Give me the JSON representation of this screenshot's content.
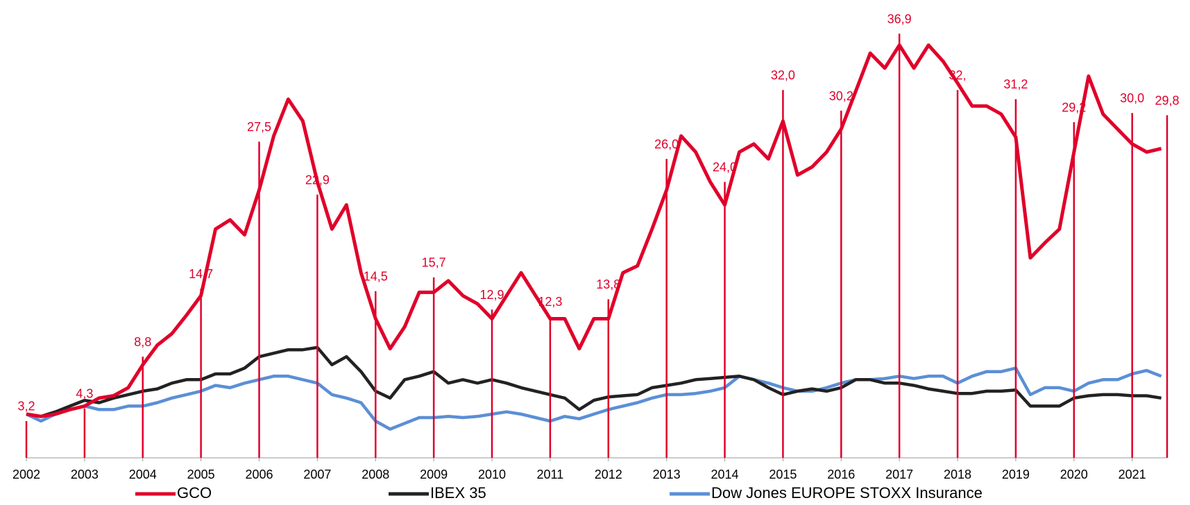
{
  "chart_data": {
    "type": "line",
    "x": [
      2002,
      2002.25,
      2002.5,
      2002.75,
      2003,
      2003.25,
      2003.5,
      2003.75,
      2004,
      2004.25,
      2004.5,
      2004.75,
      2005,
      2005.25,
      2005.5,
      2005.75,
      2006,
      2006.25,
      2006.5,
      2006.75,
      2007,
      2007.25,
      2007.5,
      2007.75,
      2008,
      2008.25,
      2008.5,
      2008.75,
      2009,
      2009.25,
      2009.5,
      2009.75,
      2010,
      2010.25,
      2010.5,
      2010.75,
      2011,
      2011.25,
      2011.5,
      2011.75,
      2012,
      2012.25,
      2012.5,
      2012.75,
      2013,
      2013.25,
      2013.5,
      2013.75,
      2014,
      2014.25,
      2014.5,
      2014.75,
      2015,
      2015.25,
      2015.5,
      2015.75,
      2016,
      2016.25,
      2016.5,
      2016.75,
      2017,
      2017.25,
      2017.5,
      2017.75,
      2018,
      2018.25,
      2018.5,
      2018.75,
      2019,
      2019.25,
      2019.5,
      2019.75,
      2020,
      2020.25,
      2020.5,
      2020.75,
      2021,
      2021.25,
      2021.5
    ],
    "series": [
      {
        "name": "GCO",
        "color": "#e0002a",
        "values": [
          3.8,
          3.6,
          3.8,
          4.2,
          4.5,
          5.2,
          5.4,
          6.1,
          8.1,
          9.8,
          10.8,
          12.4,
          14.1,
          19.9,
          20.7,
          19.4,
          23.3,
          28.0,
          31.2,
          29.3,
          24.0,
          19.9,
          22.0,
          16.1,
          12.1,
          9.5,
          11.4,
          14.4,
          14.4,
          15.4,
          14.1,
          13.4,
          12.1,
          14.1,
          16.1,
          14.1,
          12.1,
          12.1,
          9.5,
          12.1,
          12.1,
          16.1,
          16.7,
          19.9,
          23.3,
          28.0,
          26.6,
          24.0,
          22.0,
          26.6,
          27.3,
          26.0,
          29.3,
          24.6,
          25.3,
          26.6,
          28.6,
          31.9,
          35.2,
          33.9,
          35.9,
          33.9,
          35.9,
          34.5,
          32.6,
          30.6,
          30.6,
          29.9,
          27.9,
          17.4,
          18.7,
          19.9,
          26.6,
          33.2,
          29.9,
          28.6,
          27.3,
          26.6,
          26.9
        ]
      },
      {
        "name": "IBEX 35",
        "color": "#222222",
        "values": [
          3.8,
          3.6,
          4.0,
          4.5,
          5.0,
          4.8,
          5.2,
          5.5,
          5.8,
          6.0,
          6.5,
          6.8,
          6.8,
          7.3,
          7.3,
          7.8,
          8.8,
          9.1,
          9.4,
          9.4,
          9.6,
          8.1,
          8.8,
          7.5,
          5.8,
          5.2,
          6.8,
          7.1,
          7.5,
          6.5,
          6.8,
          6.5,
          6.8,
          6.5,
          6.1,
          5.8,
          5.5,
          5.2,
          4.2,
          5.0,
          5.3,
          5.4,
          5.5,
          6.1,
          6.3,
          6.5,
          6.8,
          6.9,
          7.0,
          7.1,
          6.8,
          6.1,
          5.5,
          5.8,
          6.0,
          5.8,
          6.1,
          6.8,
          6.8,
          6.5,
          6.5,
          6.3,
          6.0,
          5.8,
          5.6,
          5.6,
          5.8,
          5.8,
          5.9,
          4.5,
          4.5,
          4.5,
          5.2,
          5.4,
          5.5,
          5.5,
          5.4,
          5.4,
          5.2
        ]
      },
      {
        "name": "Dow Jones EUROPE STOXX Insurance",
        "color": "#5b8fd6",
        "values": [
          3.8,
          3.2,
          3.8,
          4.2,
          4.5,
          4.2,
          4.2,
          4.5,
          4.5,
          4.8,
          5.2,
          5.5,
          5.8,
          6.3,
          6.1,
          6.5,
          6.8,
          7.1,
          7.1,
          6.8,
          6.5,
          5.5,
          5.2,
          4.8,
          3.2,
          2.5,
          3.0,
          3.5,
          3.5,
          3.6,
          3.5,
          3.6,
          3.8,
          4.0,
          3.8,
          3.5,
          3.2,
          3.6,
          3.4,
          3.8,
          4.2,
          4.5,
          4.8,
          5.2,
          5.5,
          5.5,
          5.6,
          5.8,
          6.1,
          7.1,
          6.8,
          6.5,
          6.1,
          5.8,
          5.8,
          6.1,
          6.5,
          6.8,
          6.8,
          6.9,
          7.1,
          6.9,
          7.1,
          7.1,
          6.5,
          7.1,
          7.5,
          7.5,
          7.8,
          5.5,
          6.1,
          6.1,
          5.8,
          6.5,
          6.8,
          6.8,
          7.3,
          7.6,
          7.1
        ]
      }
    ],
    "annotations": [
      {
        "x": 2002,
        "value": 3.2,
        "label": "3,2"
      },
      {
        "x": 2003,
        "value": 4.3,
        "label": "4,3"
      },
      {
        "x": 2004,
        "value": 8.8,
        "label": "8,8"
      },
      {
        "x": 2005,
        "value": 14.7,
        "label": "14,7"
      },
      {
        "x": 2006,
        "value": 27.5,
        "label": "27,5"
      },
      {
        "x": 2007,
        "value": 22.9,
        "label": "22,9"
      },
      {
        "x": 2008,
        "value": 14.5,
        "label": "14,5"
      },
      {
        "x": 2009,
        "value": 15.7,
        "label": "15,7"
      },
      {
        "x": 2010,
        "value": 12.9,
        "label": "12,9"
      },
      {
        "x": 2011,
        "value": 12.3,
        "label": "12,3"
      },
      {
        "x": 2012,
        "value": 13.8,
        "label": "13,8"
      },
      {
        "x": 2013,
        "value": 26.0,
        "label": "26,0"
      },
      {
        "x": 2014,
        "value": 24.0,
        "label": "24,0"
      },
      {
        "x": 2015,
        "value": 32.0,
        "label": "32,0"
      },
      {
        "x": 2016,
        "value": 30.2,
        "label": "30,2"
      },
      {
        "x": 2017,
        "value": 36.9,
        "label": "36,9"
      },
      {
        "x": 2018,
        "value": 32,
        "label": "32,"
      },
      {
        "x": 2019,
        "value": 31.2,
        "label": "31,2"
      },
      {
        "x": 2020,
        "value": 29.2,
        "label": "29,2"
      },
      {
        "x": 2021,
        "value": 30.0,
        "label": "30,0"
      },
      {
        "x": 2021.6,
        "value": 29.8,
        "label": "29,8"
      }
    ],
    "annotation_color": "#e0002a",
    "xlim": [
      2002,
      2021.6
    ],
    "xticks": [
      2002,
      2003,
      2004,
      2005,
      2006,
      2007,
      2008,
      2009,
      2010,
      2011,
      2012,
      2013,
      2014,
      2015,
      2016,
      2017,
      2018,
      2019,
      2020,
      2021
    ],
    "ylim": [
      0,
      38.5
    ],
    "legend": "bottom"
  }
}
